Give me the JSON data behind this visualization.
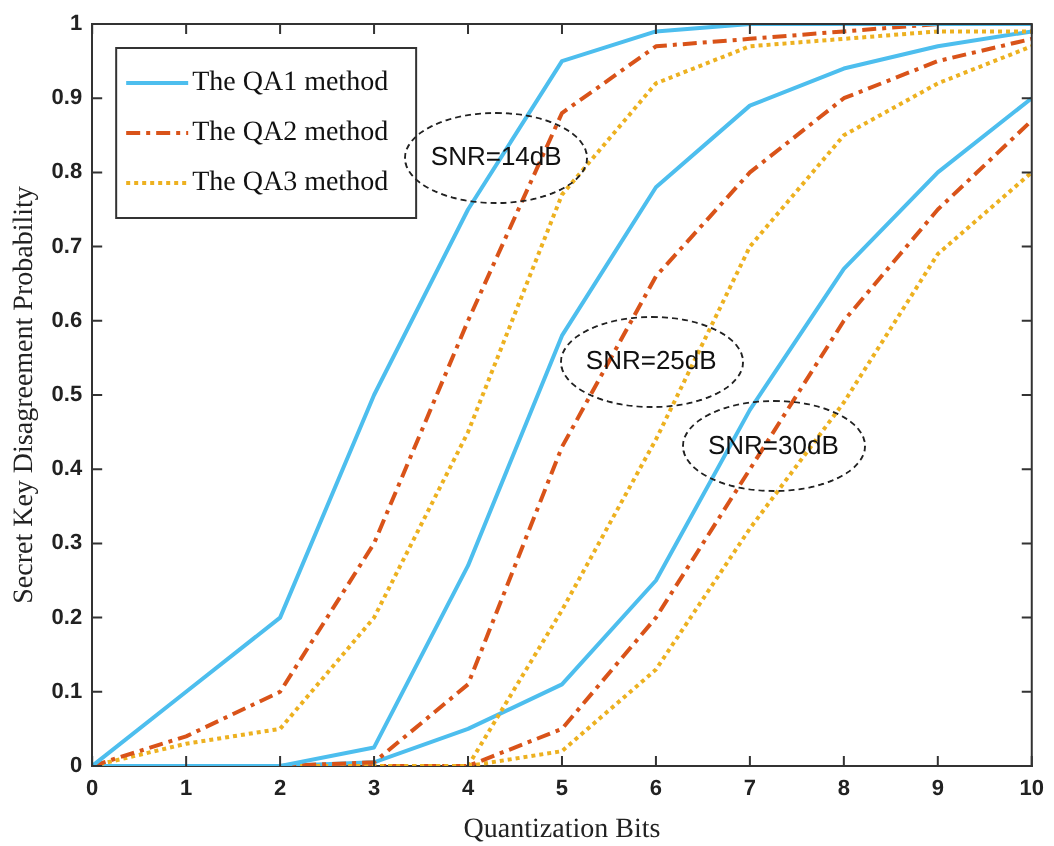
{
  "chart_data": {
    "type": "line",
    "xlabel": "Quantization Bits",
    "ylabel": "Secret Key Disagreement Probability",
    "x": [
      0,
      1,
      2,
      3,
      4,
      5,
      6,
      7,
      8,
      9,
      10
    ],
    "xlim": [
      0,
      10
    ],
    "xticks": [
      0,
      1,
      2,
      3,
      4,
      5,
      6,
      7,
      8,
      9,
      10
    ],
    "ylim": [
      0,
      1
    ],
    "yticks": [
      0,
      0.1,
      0.2,
      0.3,
      0.4,
      0.5,
      0.6,
      0.7,
      0.8,
      0.9,
      1
    ],
    "grid": false,
    "legend": "top left",
    "marker": "none",
    "series": [
      {
        "name": "The QA1 method",
        "color": "#4dbeee",
        "line_style": "solid",
        "values": [
          0,
          0.1,
          0.2,
          0.5,
          0.75,
          0.95,
          0.99,
          1,
          1,
          1,
          1
        ]
      },
      {
        "name": "The QA2 method",
        "color": "#d95319",
        "line_style": "dashed",
        "values": [
          0,
          0.04,
          0.1,
          0.3,
          0.6,
          0.88,
          0.97,
          0.98,
          0.99,
          1,
          1
        ]
      },
      {
        "name": "The QA3 method",
        "color": "#edb120",
        "line_style": "dotted",
        "values": [
          0,
          0.03,
          0.05,
          0.2,
          0.45,
          0.77,
          0.92,
          0.97,
          0.98,
          0.99,
          0.99
        ]
      },
      {
        "color": "#4dbeee",
        "line_style": "solid",
        "values": [
          0,
          0,
          0,
          0.025,
          0.27,
          0.58,
          0.78,
          0.89,
          0.94,
          0.97,
          0.99
        ]
      },
      {
        "color": "#d95319",
        "line_style": "dashed",
        "values": [
          0,
          0,
          0,
          0.005,
          0.11,
          0.43,
          0.66,
          0.8,
          0.9,
          0.95,
          0.98
        ]
      },
      {
        "color": "#edb120",
        "line_style": "dotted",
        "values": [
          0,
          0,
          0,
          0,
          0,
          0.21,
          0.44,
          0.7,
          0.85,
          0.92,
          0.97
        ]
      },
      {
        "color": "#4dbeee",
        "line_style": "solid",
        "values": [
          0,
          0,
          0,
          0.005,
          0.05,
          0.11,
          0.25,
          0.48,
          0.67,
          0.8,
          0.9
        ]
      },
      {
        "color": "#d95319",
        "line_style": "dashed",
        "values": [
          0,
          0,
          0,
          0,
          0,
          0.05,
          0.2,
          0.4,
          0.6,
          0.75,
          0.87
        ]
      },
      {
        "color": "#edb120",
        "line_style": "dotted",
        "values": [
          0,
          0,
          0,
          0,
          0,
          0.02,
          0.13,
          0.32,
          0.49,
          0.69,
          0.8
        ]
      }
    ],
    "annotations": [
      "SNR=14dB",
      "SNR=25dB",
      "SNR=30dB"
    ]
  }
}
